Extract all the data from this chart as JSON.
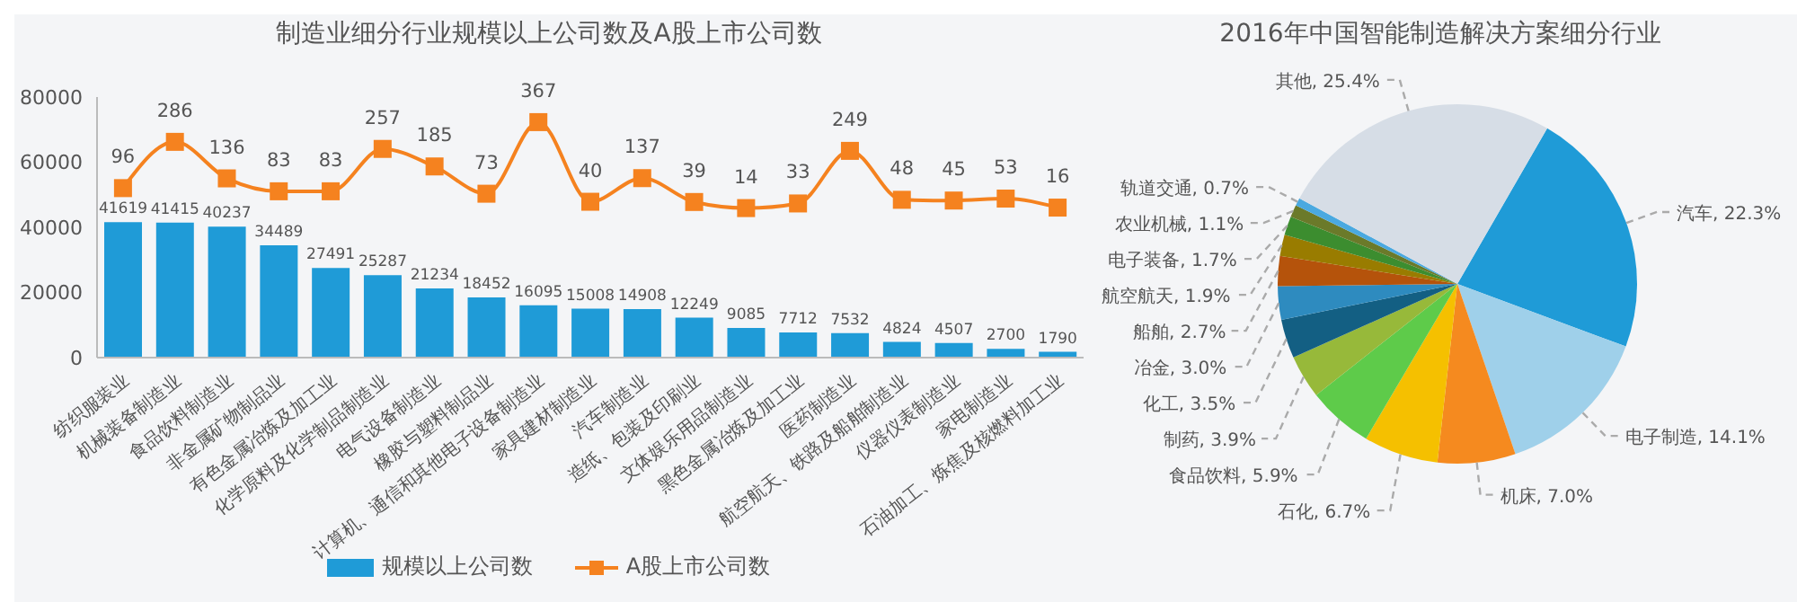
{
  "chart_data": [
    {
      "type": "bar",
      "title": "制造业细分行业规模以上公司数及A股上市公司数",
      "categories": [
        "纺织服装业",
        "机械装备制造业",
        "食品饮料制造业",
        "非金属矿物制品业",
        "有色金属冶炼及加工业",
        "化学原料及化学制品制造业",
        "电气设备制造业",
        "橡胶与塑料制品业",
        "计算机、通信和其他电子设备制造业",
        "家具建材制造业",
        "汽车制造业",
        "造纸、包装及印刷业",
        "文体娱乐用品制造业",
        "黑色金属冶炼及加工业",
        "医药制造业",
        "航空航天、铁路及船舶制造业",
        "仪器仪表制造业",
        "家电制造业",
        "石油加工、炼焦及核燃料加工业"
      ],
      "series": [
        {
          "name": "规模以上公司数",
          "type": "bar",
          "color": "#1f9bd7",
          "values": [
            41619,
            41415,
            40237,
            34489,
            27491,
            25287,
            21234,
            18452,
            16095,
            15008,
            14908,
            12249,
            9085,
            7712,
            7532,
            4824,
            4507,
            2700,
            1790
          ]
        },
        {
          "name": "A股上市公司数",
          "type": "line",
          "axis": "y2",
          "color": "#f5821f",
          "values": [
            96,
            286,
            136,
            83,
            83,
            257,
            185,
            73,
            367,
            40,
            137,
            39,
            14,
            33,
            249,
            48,
            45,
            53,
            16
          ]
        }
      ],
      "ylim": [
        0,
        80000
      ],
      "yticks": [
        0,
        20000,
        40000,
        60000,
        80000
      ],
      "y2lim": [
        -600,
        470
      ],
      "data_labels": true,
      "marker": "square",
      "legend": "bottom",
      "grid": false
    },
    {
      "type": "pie",
      "title": "2016年中国智能制造解决方案细分行业",
      "categories": [
        "汽车",
        "电子制造",
        "机床",
        "石化",
        "食品饮料",
        "制药",
        "化工",
        "冶金",
        "船舶",
        "航空航天",
        "电子装备",
        "农业机械",
        "轨道交通",
        "其他"
      ],
      "values": [
        22.3,
        14.1,
        7.0,
        6.7,
        5.9,
        3.9,
        3.5,
        3.0,
        2.7,
        1.9,
        1.7,
        1.1,
        0.7,
        25.4
      ],
      "value_labels": [
        "22.3%",
        "14.1%",
        "7.0%",
        "6.7%",
        "5.9%",
        "3.9%",
        "3.5%",
        "3.0%",
        "2.7%",
        "1.9%",
        "1.7%",
        "1.1%",
        "0.7%",
        "25.4%"
      ],
      "colors": [
        "#1f9bd7",
        "#9fd0ea",
        "#f58a1f",
        "#f5c000",
        "#5ecb4a",
        "#97b93a",
        "#135f83",
        "#2e8bbf",
        "#b5530b",
        "#997c00",
        "#3c8d2f",
        "#6b7a2a",
        "#4aa9e0",
        "#d6dde6"
      ]
    }
  ]
}
